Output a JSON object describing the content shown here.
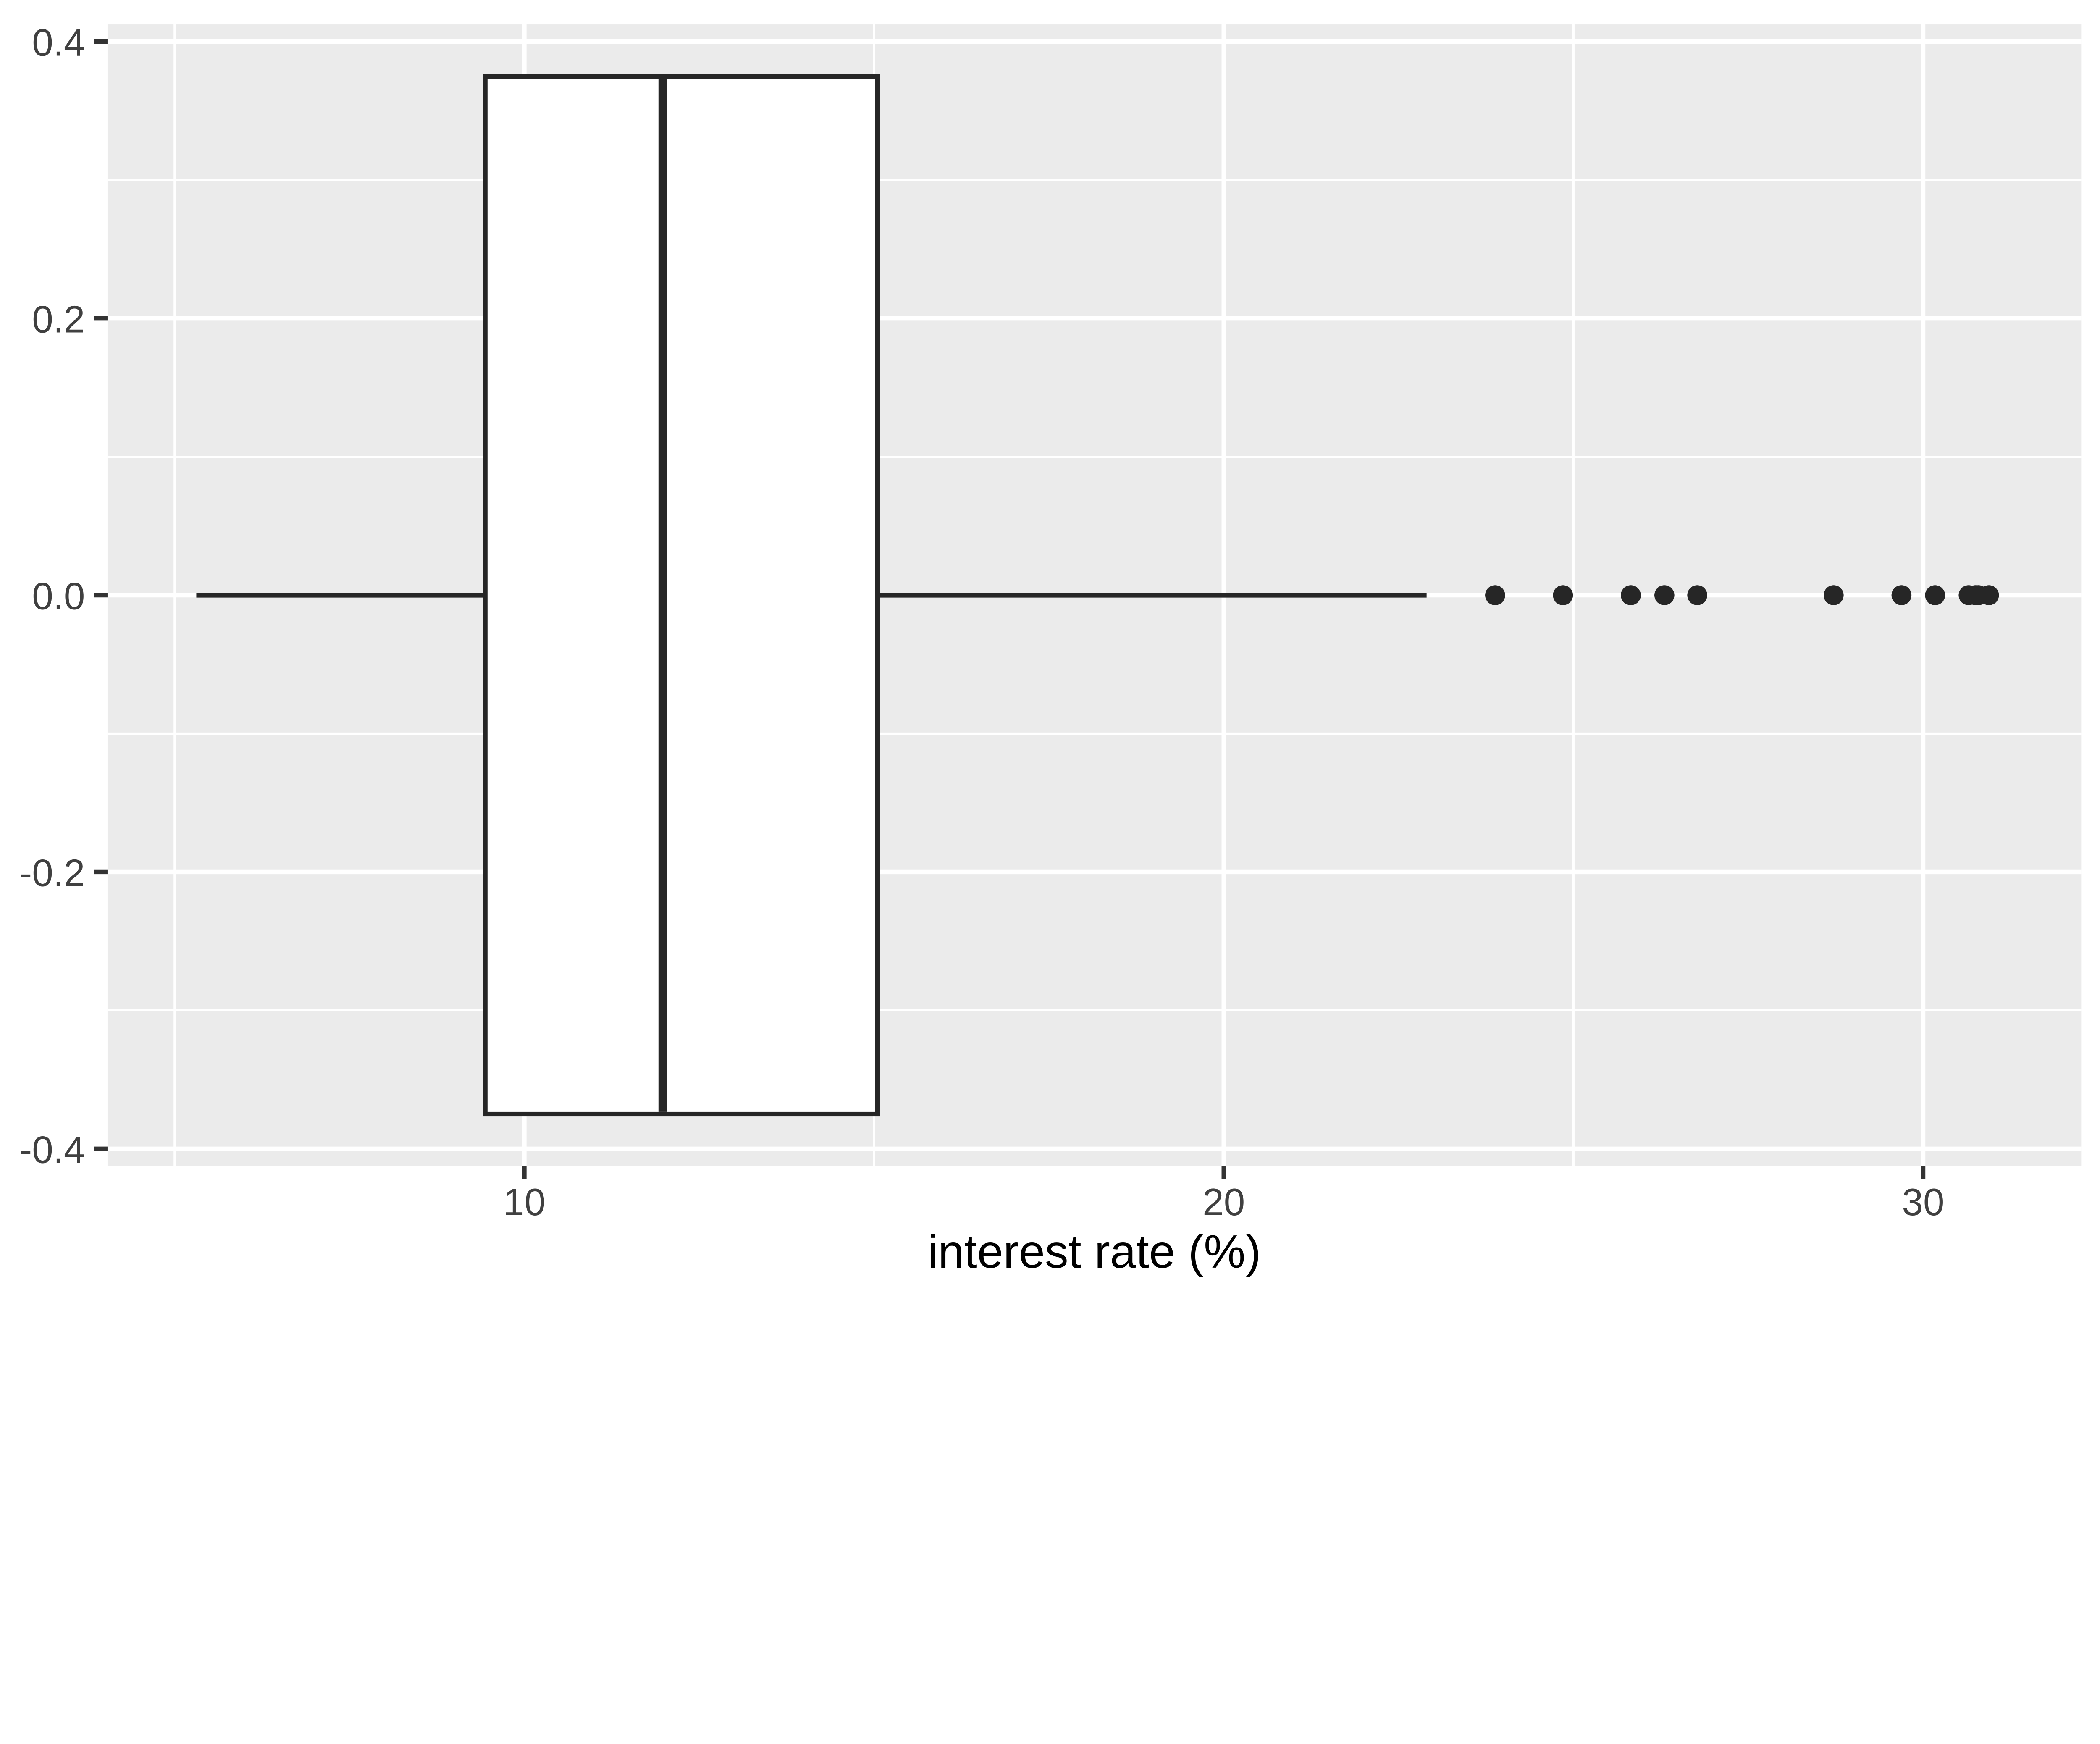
{
  "chart_data": {
    "type": "boxplot",
    "orientation": "horizontal",
    "title": "",
    "xlabel": "interest rate (%)",
    "ylabel": "",
    "x_axis": {
      "ticks": [
        10,
        20,
        30
      ],
      "tick_labels": [
        "10",
        "20",
        "30"
      ],
      "minor_ticks": [
        5,
        15,
        25
      ],
      "range": [
        4.04,
        32.26
      ]
    },
    "y_axis": {
      "ticks": [
        0.4,
        0.2,
        0.0,
        -0.2,
        -0.4
      ],
      "tick_labels": [
        "0.4",
        "0.2",
        "0.0",
        "-0.2",
        "-0.4"
      ],
      "minor_ticks": [
        0.3,
        0.1,
        -0.1,
        -0.3
      ],
      "range": [
        -0.4125,
        0.4125
      ]
    },
    "grid": "major-and-minor",
    "legend": "none",
    "series": [
      {
        "name": "interest_rate",
        "center": 0,
        "box_half_width": 0.375,
        "whisker_low": 5.31,
        "q1": 9.44,
        "median": 11.98,
        "q3": 15.05,
        "whisker_high": 22.9,
        "outliers": [
          23.88,
          24.85,
          25.82,
          26.3,
          26.77,
          28.72,
          29.69,
          30.17,
          30.65,
          30.75,
          30.79,
          30.94
        ]
      }
    ],
    "colors": {
      "figure_background": "#FFFFFF",
      "panel_background": "#EBEBEB",
      "grid": "#FFFFFF",
      "box_stroke": "#262626",
      "box_fill": "#FFFFFF",
      "outlier": "#262626",
      "tick_mark": "#333333",
      "axis_text": "#404040",
      "axis_title": "#000000"
    }
  }
}
